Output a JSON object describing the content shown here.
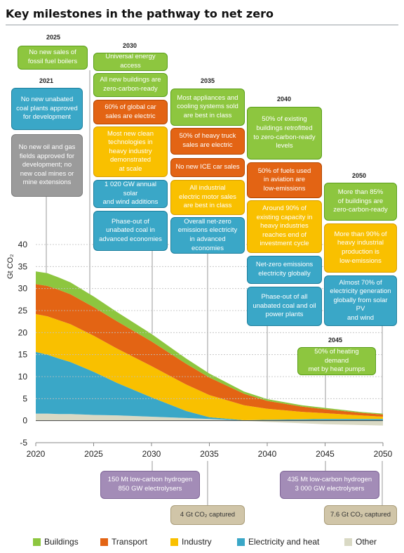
{
  "title": "Key milestones in the pathway to net zero",
  "milestones": {
    "m2025": {
      "year": "2025",
      "items": [
        "No new sales of\nfossil fuel boilers"
      ]
    },
    "m2021": {
      "year": "2021",
      "items": [
        "No new unabated\ncoal plants approved\nfor development",
        "No new oil and gas\nfields approved for\ndevelopment; no\nnew coal mines or\nmine extensions"
      ]
    },
    "m2030": {
      "year": "2030",
      "items": [
        "Universal energy access",
        "All new buildings are\nzero-carbon-ready",
        "60% of global car\nsales are electric",
        "Most new clean\ntechnologies in\nheavy industry\ndemonstrated\nat scale",
        "1 020 GW annual solar\nand wind additions",
        "Phase-out of\nunabated coal in\nadvanced economies"
      ]
    },
    "m2035": {
      "year": "2035",
      "items": [
        "Most appliances and\ncooling systems sold\nare best in class",
        "50% of heavy truck\nsales are electric",
        "No new ICE car sales",
        "All industrial\nelectric motor sales\nare best in class",
        "Overall net-zero\nemissions electricity\nin advanced\neconomies"
      ]
    },
    "m2040": {
      "year": "2040",
      "items": [
        "50% of existing\nbuildings retrofitted\nto zero-carbon-ready\nlevels",
        "50% of fuels used\nin aviation are\nlow-emissions",
        "Around 90% of\nexisting capacity in\nheavy industries\nreaches end of\ninvestment cycle",
        "Net-zero emissions\nelectricity globally",
        "Phase-out of all\nunabated coal and oil\npower plants"
      ]
    },
    "m2050": {
      "year": "2050",
      "items": [
        "More than 85%\nof buildings are\nzero-carbon-ready",
        "More than 90% of\nheavy industrial\nproduction is\nlow-emissions",
        "Almost 70% of\nelectricity generation\nglobally from solar PV\nand wind"
      ]
    },
    "m2045": {
      "year": "2045",
      "items": [
        "50% of heating demand\nmet by heat pumps"
      ]
    }
  },
  "below_axis": {
    "h2030": "150 Mt low-carbon hydrogen\n850 GW electrolysers",
    "c2035": "4 Gt CO₂ captured",
    "h2045": "435 Mt low-carbon hydrogen\n3 000 GW electrolysers",
    "c2050": "7.6 Gt CO₂ captured"
  },
  "chart_data": {
    "type": "area",
    "stacked": true,
    "ylabel": "Gt CO₂",
    "ylim": [
      -5,
      40
    ],
    "yticks": [
      -5,
      0,
      5,
      10,
      15,
      20,
      25,
      30,
      35,
      40
    ],
    "xlim": [
      2020,
      2050
    ],
    "xticks": [
      2020,
      2025,
      2030,
      2035,
      2040,
      2045,
      2050
    ],
    "x": [
      2020,
      2021,
      2022,
      2023,
      2025,
      2027,
      2030,
      2033,
      2035,
      2038,
      2040,
      2043,
      2045,
      2048,
      2050
    ],
    "series": [
      {
        "name": "Other",
        "color": "#d9d9c4",
        "values": [
          1.6,
          1.6,
          1.5,
          1.5,
          1.3,
          1.2,
          0.9,
          0.6,
          0.4,
          0.0,
          -0.3,
          -0.6,
          -0.8,
          -1.0,
          -1.1
        ]
      },
      {
        "name": "Electricity and heat",
        "color": "#3aa7c7",
        "values": [
          14.0,
          13.4,
          12.6,
          11.8,
          9.8,
          7.4,
          4.4,
          1.6,
          0.4,
          0.1,
          0.2,
          0.3,
          0.4,
          0.4,
          0.4
        ]
      },
      {
        "name": "Industry",
        "color": "#f9c000",
        "values": [
          8.6,
          8.7,
          8.7,
          8.6,
          8.2,
          7.8,
          7.1,
          6.0,
          5.0,
          3.4,
          2.5,
          1.7,
          1.3,
          0.8,
          0.5
        ]
      },
      {
        "name": "Transport",
        "color": "#e36414",
        "values": [
          6.8,
          6.9,
          6.9,
          6.8,
          6.5,
          6.2,
          5.6,
          4.7,
          4.0,
          2.6,
          1.8,
          1.2,
          0.9,
          0.6,
          0.5
        ]
      },
      {
        "name": "Buildings",
        "color": "#8dc63f",
        "values": [
          2.9,
          2.9,
          2.8,
          2.7,
          2.4,
          2.1,
          1.7,
          1.2,
          0.9,
          0.5,
          0.4,
          0.3,
          0.3,
          0.2,
          0.2
        ]
      }
    ]
  },
  "legend": [
    {
      "label": "Buildings",
      "color": "#8dc63f"
    },
    {
      "label": "Transport",
      "color": "#e36414"
    },
    {
      "label": "Industry",
      "color": "#f9c000"
    },
    {
      "label": "Electricity and heat",
      "color": "#3aa7c7"
    },
    {
      "label": "Other",
      "color": "#d9d9c4"
    }
  ]
}
